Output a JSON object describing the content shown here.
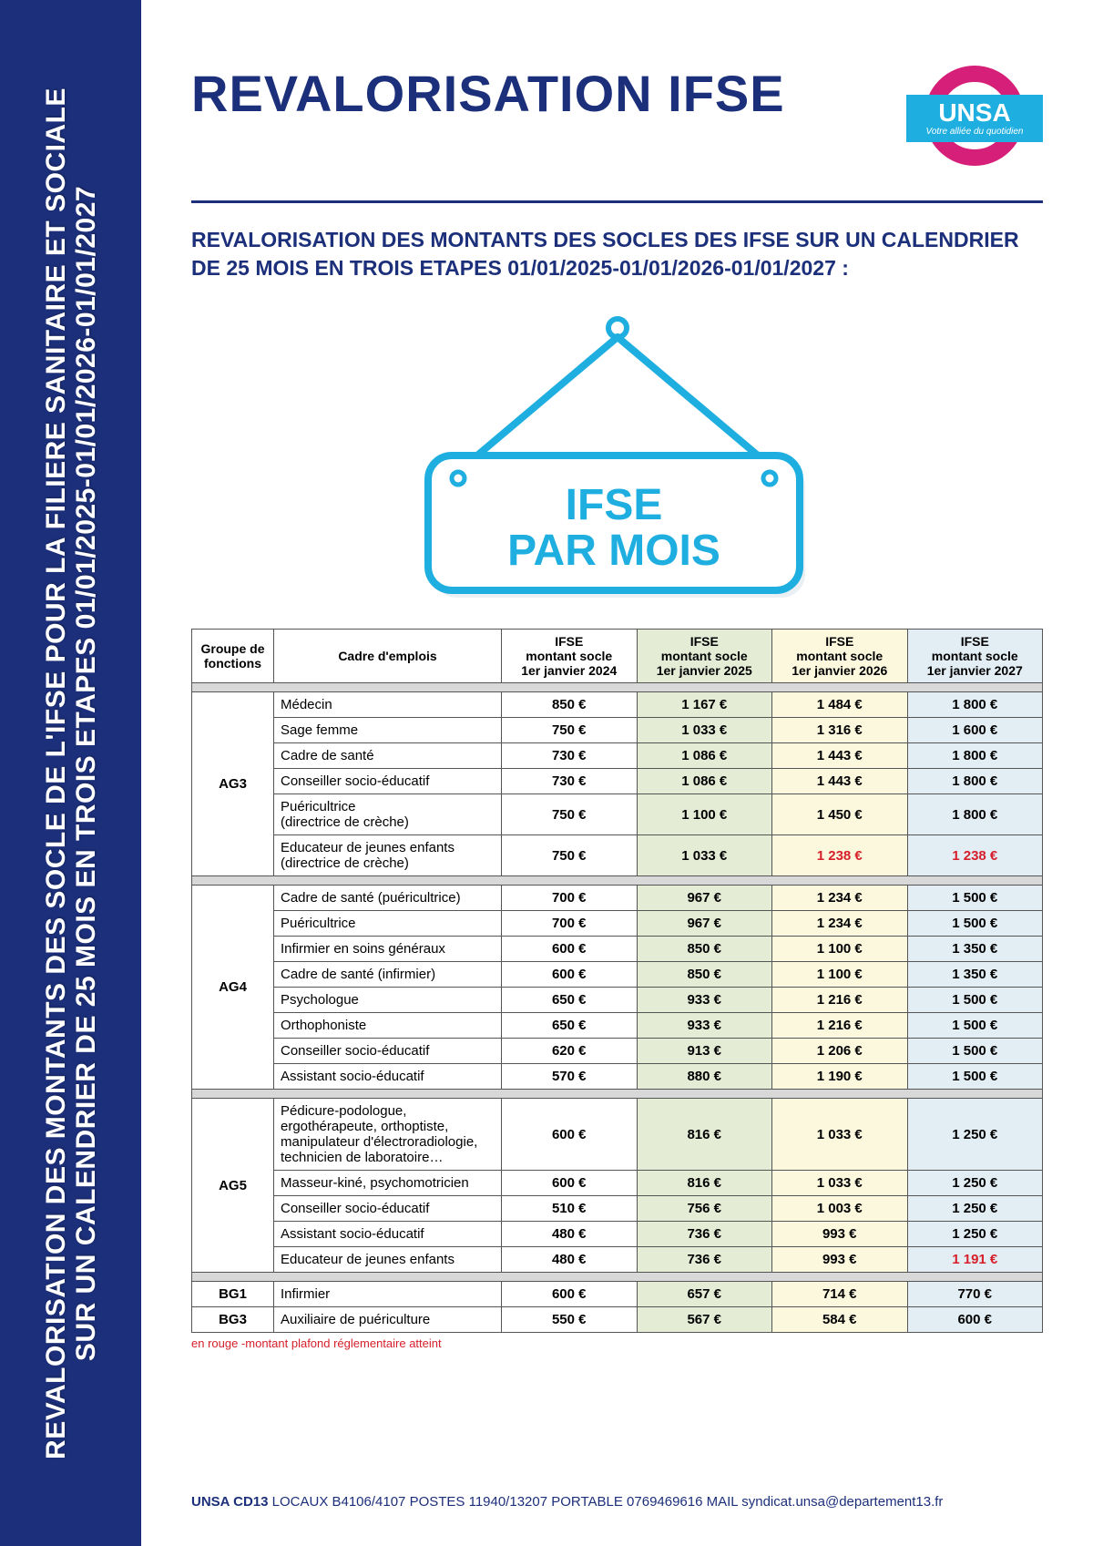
{
  "colors": {
    "primary_blue": "#1c2f7a",
    "accent_cyan": "#1faee0",
    "magenta": "#d61f78",
    "red": "#d61f2a",
    "col_2025": "#e4ecd6",
    "col_2026": "#fbf8de",
    "col_2027": "#e2edf4",
    "sep_gray": "#d8d8d8"
  },
  "sidebar": {
    "line1": "REVALORISATION DES MONTANTS DES SOCLE DE L'IFSE POUR LA FILIERE SANITAIRE ET SOCIALE",
    "line2": "SUR UN CALENDRIER DE 25 MOIS EN  TROIS ETAPES 01/01/2025-01/01/2026-01/01/2027"
  },
  "header": {
    "title": "REVALORISATION IFSE",
    "logo": {
      "name": "UNSA",
      "tagline": "Votre alliée du quotidien"
    }
  },
  "subtitle": "REVALORISATION DES MONTANTS DES SOCLES DES IFSE SUR UN CALENDRIER DE 25 MOIS EN TROIS ETAPES 01/01/2025-01/01/2026-01/01/2027 :",
  "sign": {
    "line1": "IFSE",
    "line2": "PAR MOIS"
  },
  "table": {
    "headers": {
      "group": "Groupe de fonctions",
      "job": "Cadre d'emplois",
      "y2024": "IFSE\nmontant socle\n1er janvier 2024",
      "y2025": "IFSE\nmontant socle\n1er janvier 2025",
      "y2026": "IFSE\nmontant socle\n1er janvier 2026",
      "y2027": "IFSE\nmontant socle\n1er janvier 2027"
    },
    "groups": [
      {
        "name": "AG3",
        "rows": [
          {
            "job": "Médecin",
            "v24": "850 €",
            "v25": "1 167 €",
            "v26": "1 484 €",
            "v27": "1 800 €"
          },
          {
            "job": "Sage femme",
            "v24": "750 €",
            "v25": "1 033 €",
            "v26": "1 316 €",
            "v27": "1 600 €"
          },
          {
            "job": "Cadre de santé",
            "v24": "730 €",
            "v25": "1 086 €",
            "v26": "1 443 €",
            "v27": "1 800 €"
          },
          {
            "job": "Conseiller socio-éducatif",
            "v24": "730 €",
            "v25": "1 086 €",
            "v26": "1 443 €",
            "v27": "1 800 €"
          },
          {
            "job": "Puéricultrice\n(directrice de crèche)",
            "v24": "750 €",
            "v25": "1 100 €",
            "v26": "1 450 €",
            "v27": "1 800 €"
          },
          {
            "job": "Educateur de jeunes enfants\n(directrice de crèche)",
            "v24": "750 €",
            "v25": "1 033 €",
            "v26": "1 238 €",
            "v26_red": true,
            "v27": "1 238 €",
            "v27_red": true
          }
        ]
      },
      {
        "name": "AG4",
        "rows": [
          {
            "job": "Cadre de santé (puéricultrice)",
            "v24": "700 €",
            "v25": "967 €",
            "v26": "1 234 €",
            "v27": "1 500 €"
          },
          {
            "job": "Puéricultrice",
            "v24": "700 €",
            "v25": "967 €",
            "v26": "1 234 €",
            "v27": "1 500 €"
          },
          {
            "job": "Infirmier en soins généraux",
            "v24": "600 €",
            "v25": "850 €",
            "v26": "1 100 €",
            "v27": "1 350 €"
          },
          {
            "job": "Cadre de santé (infirmier)",
            "v24": "600 €",
            "v25": "850 €",
            "v26": "1 100 €",
            "v27": "1 350 €"
          },
          {
            "job": "Psychologue",
            "v24": "650 €",
            "v25": "933 €",
            "v26": "1 216 €",
            "v27": "1 500 €"
          },
          {
            "job": "Orthophoniste",
            "v24": "650 €",
            "v25": "933 €",
            "v26": "1 216 €",
            "v27": "1 500 €"
          },
          {
            "job": "Conseiller socio-éducatif",
            "v24": "620 €",
            "v25": "913 €",
            "v26": "1 206 €",
            "v27": "1 500 €"
          },
          {
            "job": "Assistant socio-éducatif",
            "v24": "570 €",
            "v25": "880 €",
            "v26": "1 190 €",
            "v27": "1 500 €"
          }
        ]
      },
      {
        "name": "AG5",
        "rows": [
          {
            "job": "Pédicure-podologue, ergothérapeute, orthoptiste, manipulateur d'électroradiologie, technicien de laboratoire…",
            "v24": "600 €",
            "v25": "816 €",
            "v26": "1 033 €",
            "v27": "1 250 €"
          },
          {
            "job": "Masseur-kiné, psychomotricien",
            "v24": "600 €",
            "v25": "816 €",
            "v26": "1 033 €",
            "v27": "1 250 €"
          },
          {
            "job": "Conseiller socio-éducatif",
            "v24": "510 €",
            "v25": "756 €",
            "v26": "1 003 €",
            "v27": "1 250 €"
          },
          {
            "job": "Assistant socio-éducatif",
            "v24": "480 €",
            "v25": "736 €",
            "v26": "993 €",
            "v27": "1 250 €"
          },
          {
            "job": "Educateur de jeunes enfants",
            "v24": "480 €",
            "v25": "736 €",
            "v26": "993 €",
            "v27": "1 191 €",
            "v27_red": true
          }
        ]
      }
    ],
    "tailRows": [
      {
        "group": "BG1",
        "job": "Infirmier",
        "v24": "600 €",
        "v25": "657 €",
        "v26": "714 €",
        "v27": "770 €"
      },
      {
        "group": "BG3",
        "job": "Auxiliaire de puériculture",
        "v24": "550 €",
        "v25": "567 €",
        "v26": "584 €",
        "v27": "600 €"
      }
    ]
  },
  "legend": "en rouge -montant plafond réglementaire atteint",
  "footer": {
    "bold": "UNSA CD13",
    "rest": " LOCAUX B4106/4107 POSTES 11940/13207 PORTABLE 0769469616 MAIL syndicat.unsa@departement13.fr"
  }
}
